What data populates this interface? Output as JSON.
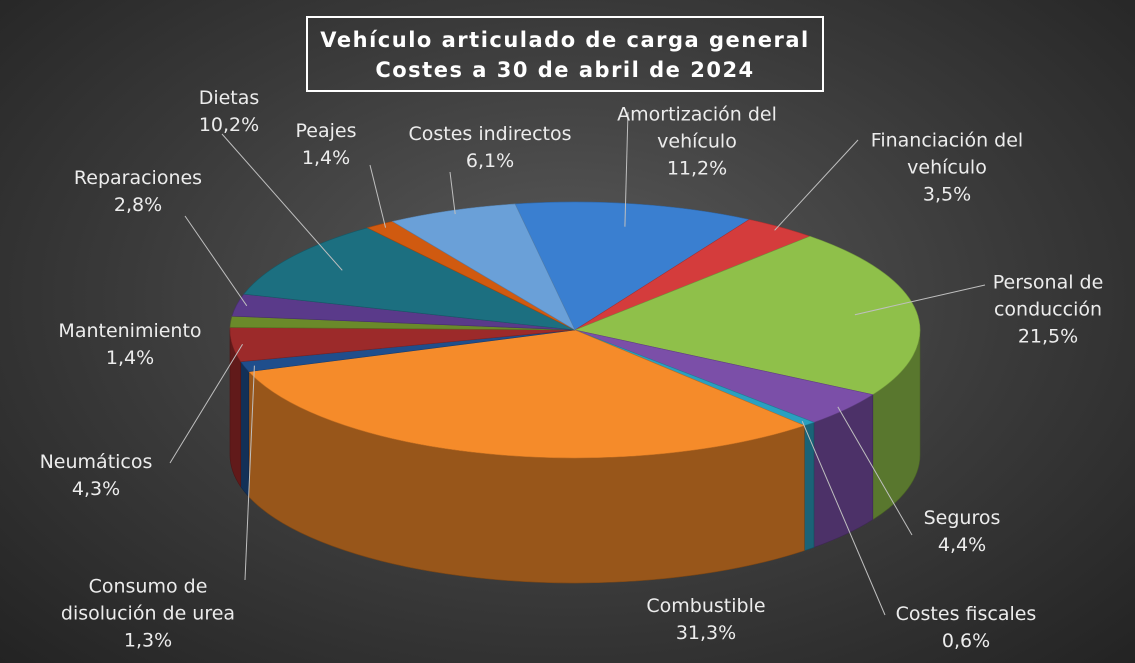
{
  "chart_data": {
    "type": "pie",
    "title": "Vehículo articulado de carga general",
    "subtitle": "Costes a 30 de abril de 2024",
    "categories": [
      "Amortización del vehículo",
      "Financiación del vehículo",
      "Personal de conducción",
      "Seguros",
      "Costes fiscales",
      "Combustible",
      "Consumo de disolución de urea",
      "Neumáticos",
      "Mantenimiento",
      "Reparaciones",
      "Dietas",
      "Peajes",
      "Costes indirectos"
    ],
    "values": [
      11.2,
      3.5,
      21.5,
      4.4,
      0.6,
      31.3,
      1.3,
      4.3,
      1.4,
      2.8,
      10.2,
      1.4,
      6.1
    ],
    "value_labels": [
      "11,2%",
      "3,5%",
      "21,5%",
      "4,4%",
      "0,6%",
      "31,3%",
      "1,3%",
      "4,3%",
      "1,4%",
      "2,8%",
      "10,2%",
      "1,4%",
      "6,1%"
    ],
    "colors": [
      "#3a7fd0",
      "#d43c3c",
      "#8fc04a",
      "#7b4fa8",
      "#2aa0c0",
      "#f58b2a",
      "#1f4e8c",
      "#9c2a2a",
      "#6a8a2a",
      "#5a3a8a",
      "#1c6f80",
      "#d05a10",
      "#6aa0d8"
    ]
  }
}
